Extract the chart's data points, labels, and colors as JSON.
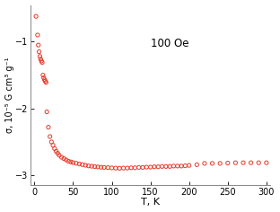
{
  "title_annotation": "100 Oe",
  "xlabel": "T, K",
  "ylabel": "σ, 10⁻⁵ G cm³ g⁻¹",
  "xlim": [
    -5,
    305
  ],
  "ylim": [
    -3.15,
    -0.45
  ],
  "yticks": [
    -3,
    -2,
    -1
  ],
  "xticks": [
    0,
    50,
    100,
    150,
    200,
    250,
    300
  ],
  "marker_color": "#e8392a",
  "background_color": "#ffffff",
  "data_T": [
    2,
    4,
    5,
    6,
    7,
    8,
    9,
    10,
    11,
    12,
    13,
    14,
    15,
    16,
    18,
    20,
    22,
    24,
    26,
    28,
    30,
    32,
    35,
    38,
    41,
    44,
    47,
    50,
    54,
    58,
    62,
    66,
    70,
    74,
    78,
    82,
    86,
    90,
    95,
    100,
    105,
    110,
    115,
    120,
    125,
    130,
    135,
    140,
    145,
    150,
    155,
    160,
    165,
    170,
    175,
    180,
    185,
    190,
    195,
    200,
    210,
    220,
    230,
    240,
    250,
    260,
    270,
    280,
    290,
    300
  ],
  "data_sigma": [
    -0.62,
    -0.9,
    -1.05,
    -1.15,
    -1.22,
    -1.26,
    -1.29,
    -1.31,
    -1.5,
    -1.54,
    -1.57,
    -1.59,
    -1.61,
    -2.05,
    -2.28,
    -2.42,
    -2.5,
    -2.55,
    -2.6,
    -2.64,
    -2.67,
    -2.7,
    -2.73,
    -2.75,
    -2.77,
    -2.79,
    -2.8,
    -2.81,
    -2.82,
    -2.83,
    -2.84,
    -2.85,
    -2.86,
    -2.865,
    -2.87,
    -2.875,
    -2.88,
    -2.882,
    -2.885,
    -2.89,
    -2.892,
    -2.895,
    -2.892,
    -2.892,
    -2.888,
    -2.888,
    -2.882,
    -2.882,
    -2.878,
    -2.878,
    -2.873,
    -2.873,
    -2.868,
    -2.868,
    -2.868,
    -2.862,
    -2.862,
    -2.862,
    -2.858,
    -2.852,
    -2.842,
    -2.822,
    -2.822,
    -2.822,
    -2.817,
    -2.812,
    -2.812,
    -2.812,
    -2.812,
    -2.812
  ],
  "figsize": [
    3.12,
    2.36
  ],
  "dpi": 100
}
